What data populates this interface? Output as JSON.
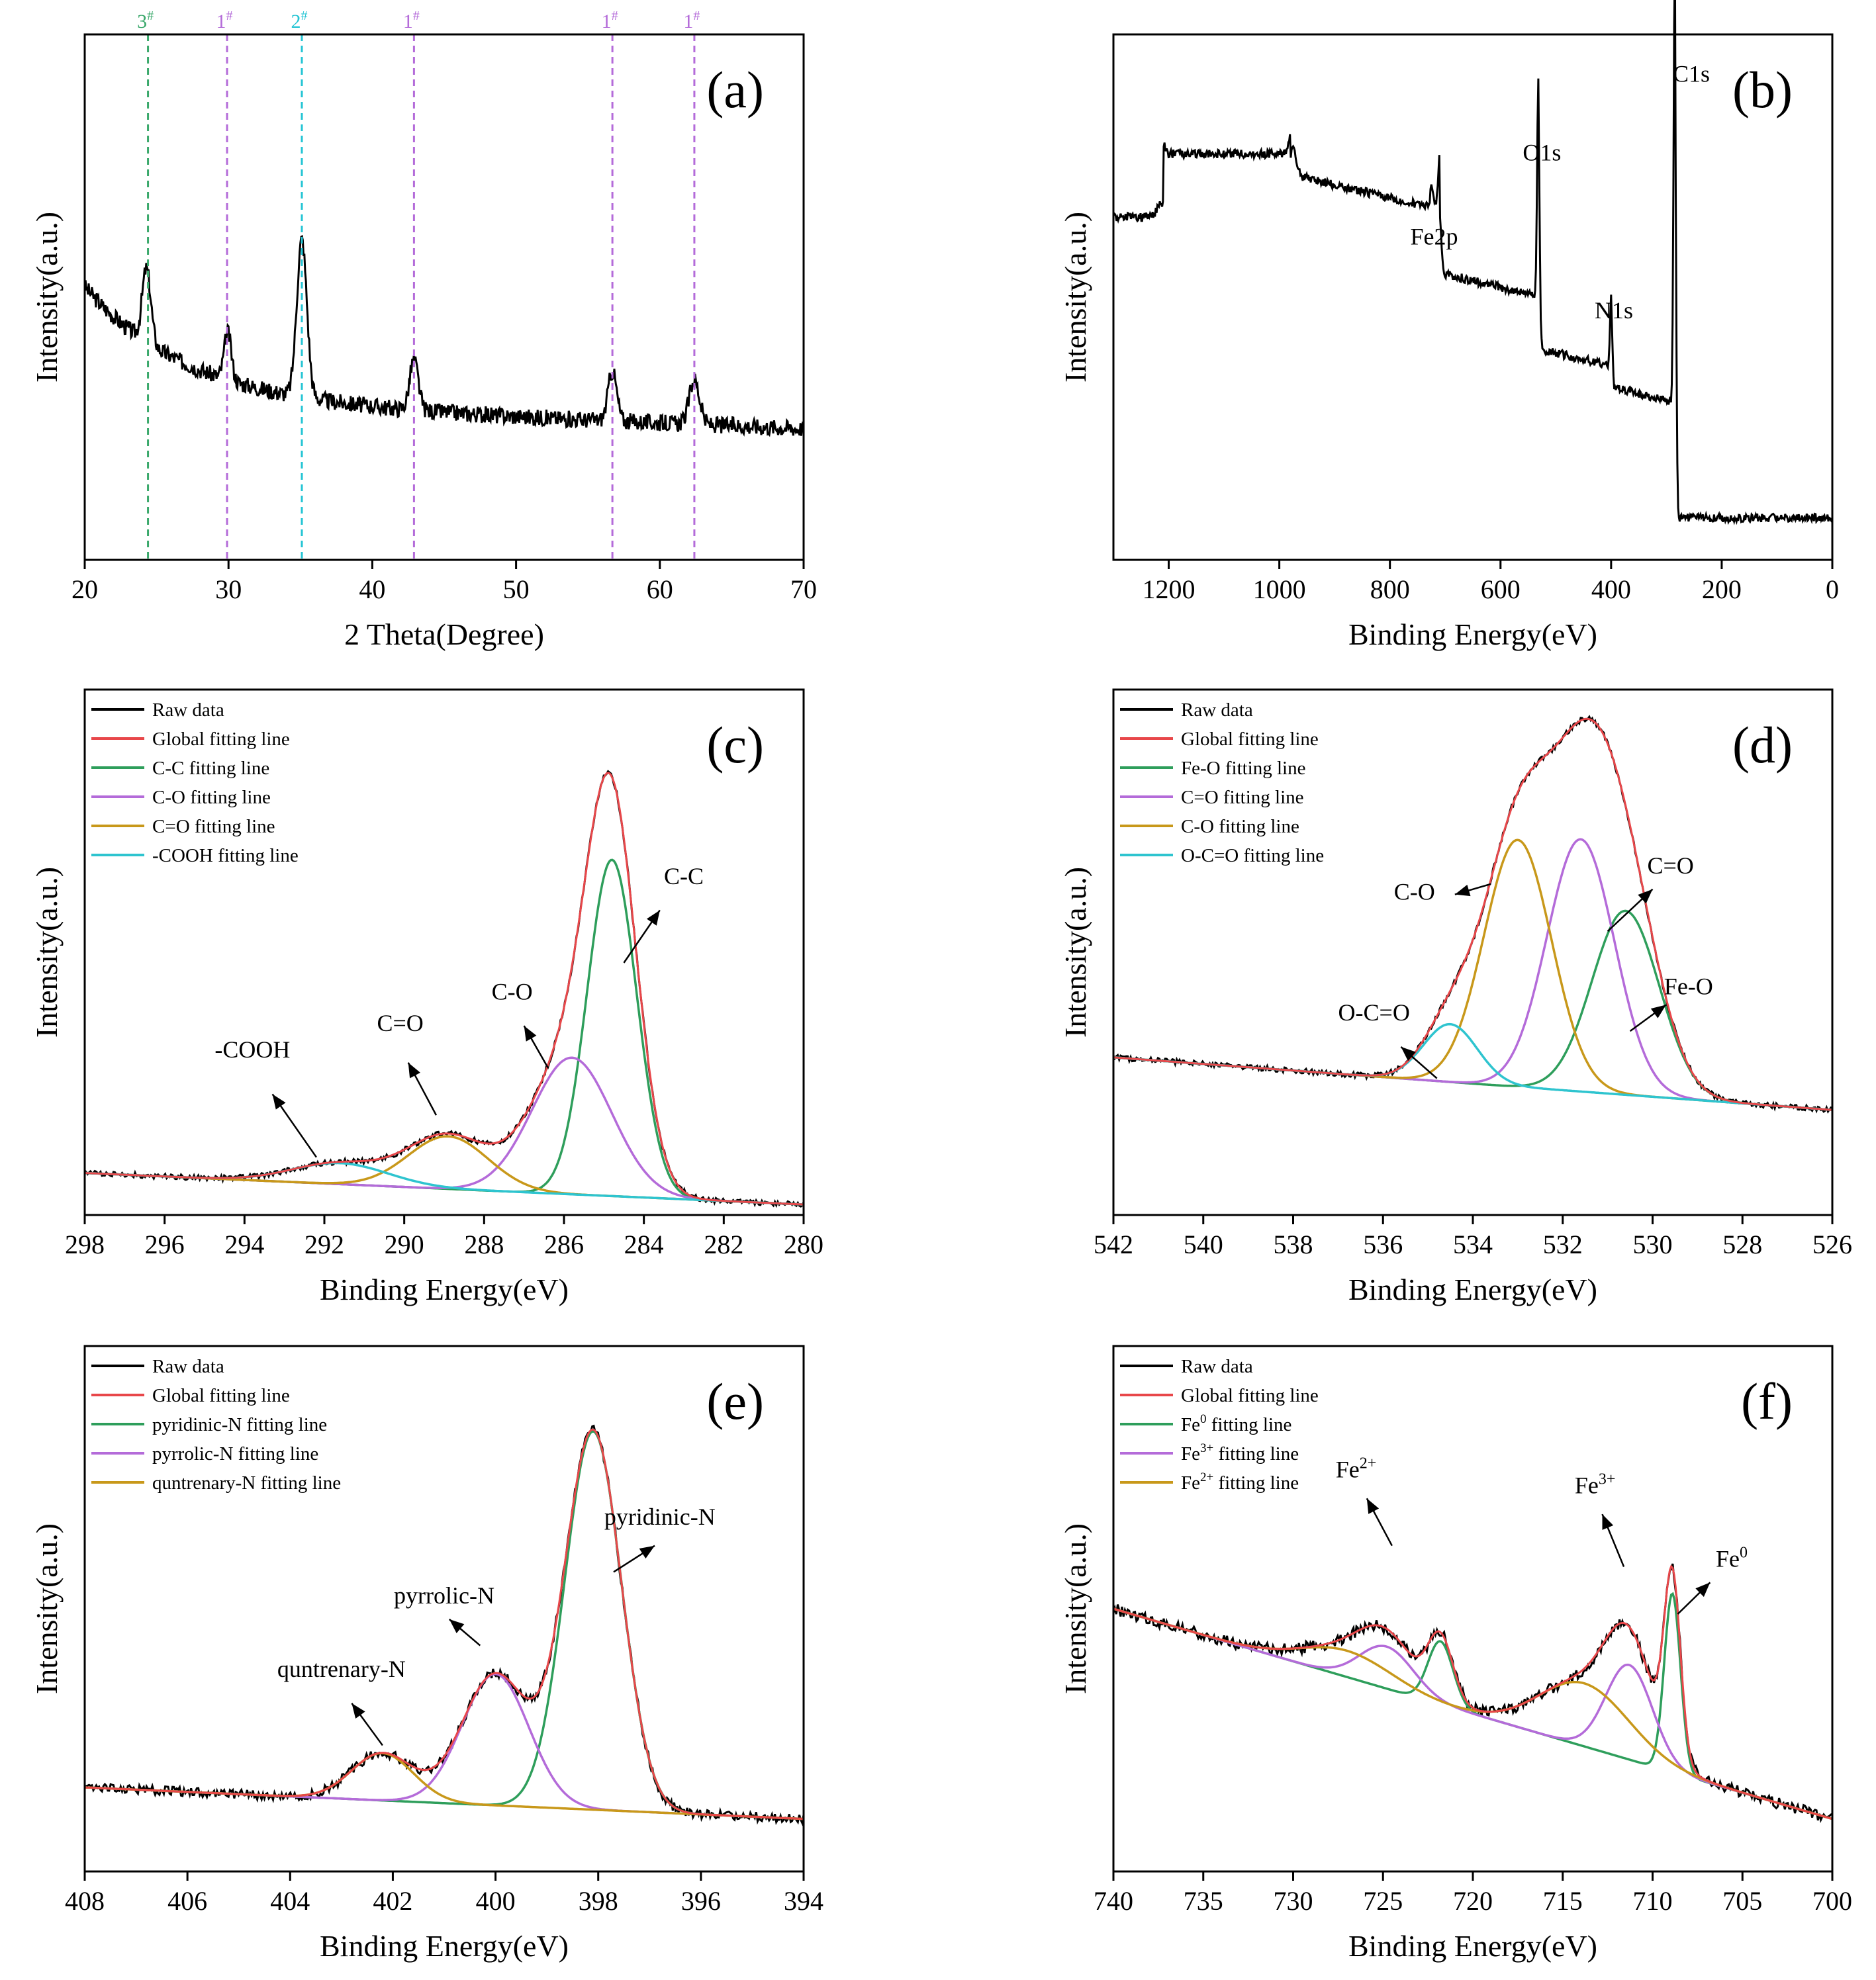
{
  "figure": "XRD and XPS characterization (six panels)",
  "colors": {
    "raw": "#000000",
    "global": "#e8474a",
    "green": "#2e9e5b",
    "purple": "#b46bd9",
    "gold": "#c8981a",
    "cyan": "#2ec4cf",
    "marker_green": "#3aa86b",
    "marker_purple": "#b46bd9",
    "marker_cyan": "#23c4d4"
  },
  "chart_data": [
    {
      "id": "a",
      "letter": "(a)",
      "type": "line",
      "title": "",
      "xlabel": "2 Theta(Degree)",
      "ylabel": "Intensity(a.u.)",
      "xlim": [
        20,
        70
      ],
      "reverse": false,
      "ylim": [
        0,
        100
      ],
      "xticks": [
        20,
        30,
        40,
        50,
        60,
        70
      ],
      "markers": [
        {
          "x": 24.4,
          "label": "3#",
          "base": "3",
          "sup": "#",
          "color": "#3aa86b"
        },
        {
          "x": 29.9,
          "label": "1#",
          "base": "1",
          "sup": "#",
          "color": "#b46bd9"
        },
        {
          "x": 35.1,
          "label": "2#",
          "base": "2",
          "sup": "#",
          "color": "#23c4d4"
        },
        {
          "x": 42.9,
          "label": "1#",
          "base": "1",
          "sup": "#",
          "color": "#b46bd9"
        },
        {
          "x": 56.7,
          "label": "1#",
          "base": "1",
          "sup": "#",
          "color": "#b46bd9"
        },
        {
          "x": 62.4,
          "label": "1#",
          "base": "1",
          "sup": "#",
          "color": "#b46bd9"
        }
      ],
      "series": [
        {
          "name": "XRD pattern",
          "color": "#000000",
          "noise": 1.6,
          "seed": 3,
          "baseline": "xrd",
          "peaks": [
            [
              24.3,
              14,
              0.3
            ],
            [
              29.95,
              9,
              0.25
            ],
            [
              35.1,
              30,
              0.35
            ],
            [
              42.9,
              9.5,
              0.3
            ],
            [
              56.7,
              9.5,
              0.3
            ],
            [
              62.4,
              8.5,
              0.35
            ]
          ]
        }
      ],
      "annotations": []
    },
    {
      "id": "b",
      "letter": "(b)",
      "type": "line",
      "title": "",
      "xlabel": "Binding Energy(eV)",
      "ylabel": "Intensity(a.u.)",
      "xlim": [
        0,
        1300
      ],
      "reverse": true,
      "ylim": [
        0,
        100
      ],
      "xticks": [
        1200,
        1000,
        800,
        600,
        400,
        200,
        0
      ],
      "markers": [],
      "series": [
        {
          "name": "XPS survey",
          "color": "#000000",
          "noise": 0.8,
          "seed": 7,
          "baseline": "survey",
          "peaks": [
            [
              284.8,
              84,
              2.2
            ],
            [
              531.5,
              42,
              2.2
            ],
            [
              399.8,
              14,
              2
            ],
            [
              710,
              10,
              3
            ],
            [
              724,
              4,
              3
            ],
            [
              975,
              5,
              6
            ],
            [
              1215,
              3,
              6
            ]
          ]
        }
      ],
      "annotations": [
        {
          "text": "C1s",
          "x": 255,
          "y": 91
        },
        {
          "text": "O1s",
          "x": 525,
          "y": 76
        },
        {
          "text": "N1s",
          "x": 395,
          "y": 46
        },
        {
          "text": "Fe2p",
          "x": 720,
          "y": 60
        }
      ]
    },
    {
      "id": "c",
      "letter": "(c)",
      "type": "line",
      "title": "",
      "xlabel": "Binding Energy(eV)",
      "ylabel": "Intensity(a.u.)",
      "xlim": [
        280,
        298
      ],
      "reverse": true,
      "ylim": [
        0,
        100
      ],
      "xticks": [
        298,
        296,
        294,
        292,
        290,
        288,
        286,
        284,
        282,
        280
      ],
      "baseline": {
        "left": 8,
        "right": 2
      },
      "components": [
        {
          "name": "C-C fitting line",
          "color": "#2e9e5b",
          "peaks": [
            [
              284.8,
              64,
              0.62
            ]
          ]
        },
        {
          "name": "C-O fitting line",
          "color": "#b46bd9",
          "peaks": [
            [
              285.8,
              26,
              1.0
            ]
          ]
        },
        {
          "name": "C=O fitting line",
          "color": "#c8981a",
          "peaks": [
            [
              288.9,
              10,
              1.0
            ]
          ]
        },
        {
          "name": "-COOH fitting line",
          "color": "#2ec4cf",
          "peaks": [
            [
              291.6,
              4,
              1.2
            ]
          ]
        }
      ],
      "raw": {
        "name": "Raw data",
        "noise": 0.5,
        "seed": 11
      },
      "global": {
        "name": "Global fitting line"
      },
      "legend": [
        "Raw data",
        "Global fitting line",
        "C-C fitting line",
        "C-O fitting line",
        "C=O fitting line",
        "-COOH fitting line"
      ],
      "legend_colors": [
        "#000000",
        "#e8474a",
        "#2e9e5b",
        "#b46bd9",
        "#c8981a",
        "#2ec4cf"
      ],
      "annotations": [
        {
          "text": "C-C",
          "x": 283.0,
          "y": 63,
          "ax": 284.5,
          "ay": 48,
          "tx": 283.6,
          "ty": 58
        },
        {
          "text": "C-O",
          "x": 287.3,
          "y": 41,
          "ax": 286.4,
          "ay": 28,
          "tx": 287.0,
          "ty": 36
        },
        {
          "text": "C=O",
          "x": 290.1,
          "y": 35,
          "ax": 289.2,
          "ay": 19,
          "tx": 289.9,
          "ty": 29
        },
        {
          "text": "-COOH",
          "x": 293.8,
          "y": 30,
          "ax": 292.2,
          "ay": 11,
          "tx": 293.3,
          "ty": 23
        }
      ]
    },
    {
      "id": "d",
      "letter": "(d)",
      "type": "line",
      "title": "",
      "xlabel": "Binding Energy(eV)",
      "ylabel": "Intensity(a.u.)",
      "xlim": [
        526,
        542
      ],
      "reverse": true,
      "ylim": [
        0,
        100
      ],
      "xticks": [
        542,
        540,
        538,
        536,
        534,
        532,
        530,
        528,
        526
      ],
      "baseline": {
        "left": 30,
        "right": 20
      },
      "components": [
        {
          "name": "Fe-O fitting line",
          "color": "#2e9e5b",
          "peaks": [
            [
              530.6,
              35,
              0.75
            ]
          ]
        },
        {
          "name": "C=O fitting line",
          "color": "#b46bd9",
          "peaks": [
            [
              531.6,
              48,
              0.75
            ]
          ]
        },
        {
          "name": "C-O fitting line",
          "color": "#c8981a",
          "peaks": [
            [
              533.0,
              47,
              0.75
            ]
          ]
        },
        {
          "name": "O-C=O fitting line",
          "color": "#2ec4cf",
          "peaks": [
            [
              534.5,
              11,
              0.6
            ]
          ]
        }
      ],
      "raw": {
        "name": "Raw data",
        "noise": 0.5,
        "seed": 13
      },
      "global": {
        "name": "Global fitting line"
      },
      "legend": [
        "Raw data",
        "Global fitting line",
        "Fe-O fitting line",
        "C=O fitting line",
        "C-O fitting line",
        "O-C=O fitting line"
      ],
      "legend_colors": [
        "#000000",
        "#e8474a",
        "#2e9e5b",
        "#b46bd9",
        "#c8981a",
        "#2ec4cf"
      ],
      "annotations": [
        {
          "text": "C=O",
          "x": 529.6,
          "y": 65,
          "ax": 531.0,
          "ay": 54,
          "tx": 530.0,
          "ty": 62
        },
        {
          "text": "Fe-O",
          "x": 529.2,
          "y": 42,
          "ax": 530.5,
          "ay": 35,
          "tx": 529.7,
          "ty": 40
        },
        {
          "text": "C-O",
          "x": 535.3,
          "y": 60,
          "ax": 533.6,
          "ay": 63,
          "tx": 534.4,
          "ty": 61
        },
        {
          "text": "O-C=O",
          "x": 536.2,
          "y": 37,
          "ax": 534.8,
          "ay": 26,
          "tx": 535.6,
          "ty": 32
        }
      ]
    },
    {
      "id": "e",
      "letter": "(e)",
      "type": "line",
      "title": "",
      "xlabel": "Binding Energy(eV)",
      "ylabel": "Intensity(a.u.)",
      "xlim": [
        394,
        408
      ],
      "reverse": true,
      "ylim": [
        0,
        100
      ],
      "xticks": [
        408,
        406,
        404,
        402,
        400,
        398,
        396,
        394
      ],
      "baseline": {
        "left": 16,
        "right": 10
      },
      "components": [
        {
          "name": "pyridinic-N fitting line",
          "color": "#2e9e5b",
          "peaks": [
            [
              398.1,
              72,
              0.55
            ]
          ]
        },
        {
          "name": "pyrrolic-N fitting line",
          "color": "#b46bd9",
          "peaks": [
            [
              400.0,
              25,
              0.65
            ]
          ]
        },
        {
          "name": "quntrenary-N fitting line",
          "color": "#c8981a",
          "peaks": [
            [
              402.2,
              9,
              0.6
            ]
          ]
        }
      ],
      "raw": {
        "name": "Raw data",
        "noise": 0.9,
        "seed": 17
      },
      "global": {
        "name": "Global fitting line"
      },
      "legend": [
        "Raw data",
        "Global fitting line",
        "pyridinic-N fitting line",
        "pyrrolic-N fitting line",
        "quntrenary-N fitting line"
      ],
      "legend_colors": [
        "#000000",
        "#e8474a",
        "#2e9e5b",
        "#b46bd9",
        "#c8981a"
      ],
      "annotations": [
        {
          "text": "pyridinic-N",
          "x": 396.8,
          "y": 66,
          "ax": 397.7,
          "ay": 57,
          "tx": 396.9,
          "ty": 62
        },
        {
          "text": "pyrrolic-N",
          "x": 401.0,
          "y": 51,
          "ax": 400.3,
          "ay": 43,
          "tx": 400.9,
          "ty": 48
        },
        {
          "text": "quntrenary-N",
          "x": 403.0,
          "y": 37,
          "ax": 402.2,
          "ay": 24,
          "tx": 402.8,
          "ty": 32
        }
      ]
    },
    {
      "id": "f",
      "letter": "(f)",
      "type": "line",
      "title": "",
      "xlabel": "Binding Energy(eV)",
      "ylabel": "Intensity(a.u.)",
      "xlim": [
        700,
        740
      ],
      "reverse": true,
      "ylim": [
        0,
        100
      ],
      "xticks": [
        740,
        735,
        730,
        725,
        720,
        715,
        710,
        705,
        700
      ],
      "baseline": {
        "left": 50,
        "right": 10
      },
      "components": [
        {
          "name": "Fe0 fitting line",
          "label": "Fe",
          "sup": "0",
          "color": "#2e9e5b",
          "peaks": [
            [
              708.9,
              34,
              0.45
            ],
            [
              721.8,
              12,
              0.7
            ]
          ]
        },
        {
          "name": "Fe3+ fitting line",
          "label": "Fe",
          "sup": "3+",
          "color": "#b46bd9",
          "peaks": [
            [
              711.3,
              18,
              1.3
            ],
            [
              724.8,
              8,
              1.5
            ]
          ]
        },
        {
          "name": "Fe2+ fitting line",
          "label": "Fe",
          "sup": "2+",
          "color": "#c8981a",
          "peaks": [
            [
              713.8,
              12,
              2.5
            ],
            [
              727.0,
              5,
              2.5
            ]
          ]
        }
      ],
      "raw": {
        "name": "Raw data",
        "noise": 1.1,
        "seed": 23
      },
      "global": {
        "name": "Global fitting line"
      },
      "legend": [
        "Raw data",
        "Global fitting line",
        "Fe0 fitting line",
        "Fe3+ fitting line",
        "Fe2+ fitting line"
      ],
      "legend_colors": [
        "#000000",
        "#e8474a",
        "#2e9e5b",
        "#b46bd9",
        "#c8981a"
      ],
      "annotations": [
        {
          "text": "Fe2+",
          "base": "Fe",
          "sup": "2+",
          "x": 726.5,
          "y": 75,
          "ax": 724.5,
          "ay": 62,
          "tx": 725.9,
          "ty": 71
        },
        {
          "text": "Fe3+",
          "base": "Fe",
          "sup": "3+",
          "x": 713.2,
          "y": 72,
          "ax": 711.6,
          "ay": 58,
          "tx": 712.8,
          "ty": 68
        },
        {
          "text": "Fe0",
          "base": "Fe",
          "sup": "0",
          "x": 705.6,
          "y": 58,
          "ax": 708.6,
          "ay": 49,
          "tx": 706.8,
          "ty": 55
        }
      ]
    }
  ]
}
